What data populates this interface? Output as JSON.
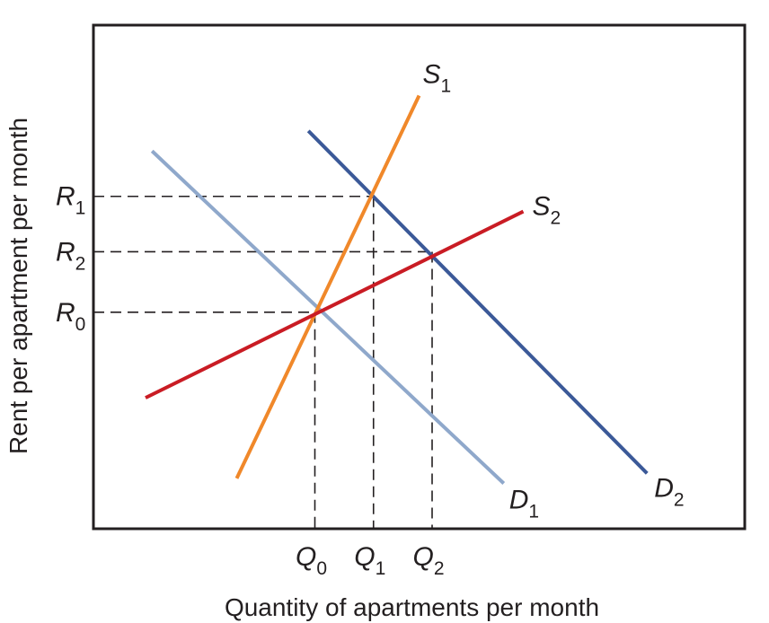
{
  "chart_data": {
    "type": "line",
    "xlabel": "Quantity of apartments per month",
    "ylabel": "Rent per apartment per month",
    "xlim": [
      0,
      100
    ],
    "ylim": [
      0,
      100
    ],
    "grid": false,
    "legend": "none",
    "series": [
      {
        "name": "D₁",
        "label": [
          "D",
          "1"
        ],
        "color": "#8fa8cb",
        "x": [
          9,
          63
        ],
        "y": [
          75,
          9
        ]
      },
      {
        "name": "D₂",
        "label": [
          "D",
          "2"
        ],
        "color": "#3b5998",
        "x": [
          33,
          85
        ],
        "y": [
          79,
          11
        ]
      },
      {
        "name": "S₁",
        "label": [
          "S",
          "1"
        ],
        "color": "#f0882a",
        "x": [
          22,
          50
        ],
        "y": [
          10,
          86
        ]
      },
      {
        "name": "S₂",
        "label": [
          "S",
          "2"
        ],
        "color": "#c91c24",
        "x": [
          8,
          66
        ],
        "y": [
          26,
          63
        ]
      }
    ],
    "y_ticks": [
      {
        "name": "R₁",
        "main": "R",
        "sub": "1",
        "y": 66,
        "to_x": 43
      },
      {
        "name": "R₂",
        "main": "R",
        "sub": "2",
        "y": 55,
        "to_x": 52
      },
      {
        "name": "R₀",
        "main": "R",
        "sub": "0",
        "y": 43,
        "to_x": 34
      }
    ],
    "x_ticks": [
      {
        "name": "Q₀",
        "main": "Q",
        "sub": "0",
        "x": 34,
        "to_y": 43
      },
      {
        "name": "Q₁",
        "main": "Q",
        "sub": "1",
        "x": 43,
        "to_y": 66
      },
      {
        "name": "Q₂",
        "main": "Q",
        "sub": "2",
        "x": 52,
        "to_y": 55
      }
    ]
  }
}
